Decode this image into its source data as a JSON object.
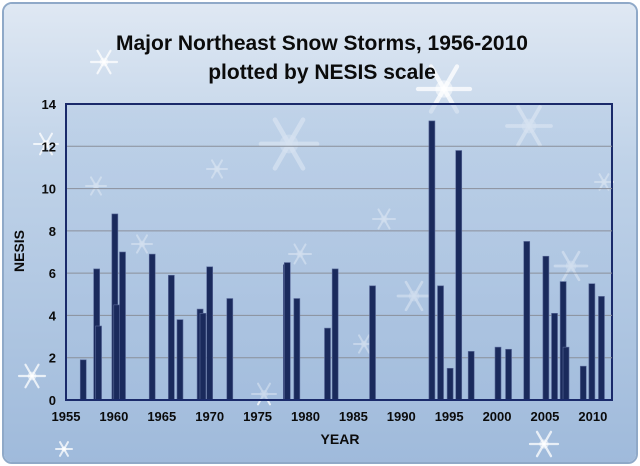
{
  "chart_data": {
    "type": "bar",
    "title": "Major Northeast Snow Storms, 1956-2010",
    "subtitle": "plotted by NESIS scale",
    "xlabel": "YEAR",
    "ylabel": "NESIS",
    "xlim": [
      1955,
      2012
    ],
    "ylim": [
      0,
      14
    ],
    "x_ticks": [
      1955,
      1960,
      1965,
      1970,
      1975,
      1980,
      1985,
      1990,
      1995,
      2000,
      2005,
      2010
    ],
    "y_ticks": [
      0,
      2,
      4,
      6,
      8,
      10,
      12,
      14
    ],
    "grid": true,
    "bar_color": "#1a2a5c",
    "series": [
      {
        "x": [
          1956.8,
          1958.2,
          1958.4,
          1960.1,
          1960.3,
          1960.9,
          1964.0,
          1966.0,
          1966.9,
          1969.0,
          1969.3,
          1970.0,
          1972.1,
          1978.0,
          1978.1,
          1979.1,
          1982.3,
          1983.1,
          1987.0,
          1993.2,
          1994.1,
          1995.1,
          1996.0,
          1997.3,
          2000.1,
          2001.2,
          2003.1,
          2005.1,
          2006.0,
          2006.9,
          2007.2,
          2009.0,
          2009.9,
          2010.9
        ],
        "values": [
          1.9,
          6.2,
          3.5,
          8.8,
          4.5,
          7.0,
          6.9,
          5.9,
          3.8,
          4.3,
          4.1,
          6.3,
          4.8,
          6.4,
          6.5,
          4.8,
          3.4,
          6.2,
          5.4,
          13.2,
          5.4,
          1.5,
          11.8,
          2.3,
          2.5,
          2.4,
          7.5,
          6.8,
          4.1,
          5.6,
          2.5,
          1.6,
          5.5,
          4.9
        ]
      }
    ]
  }
}
